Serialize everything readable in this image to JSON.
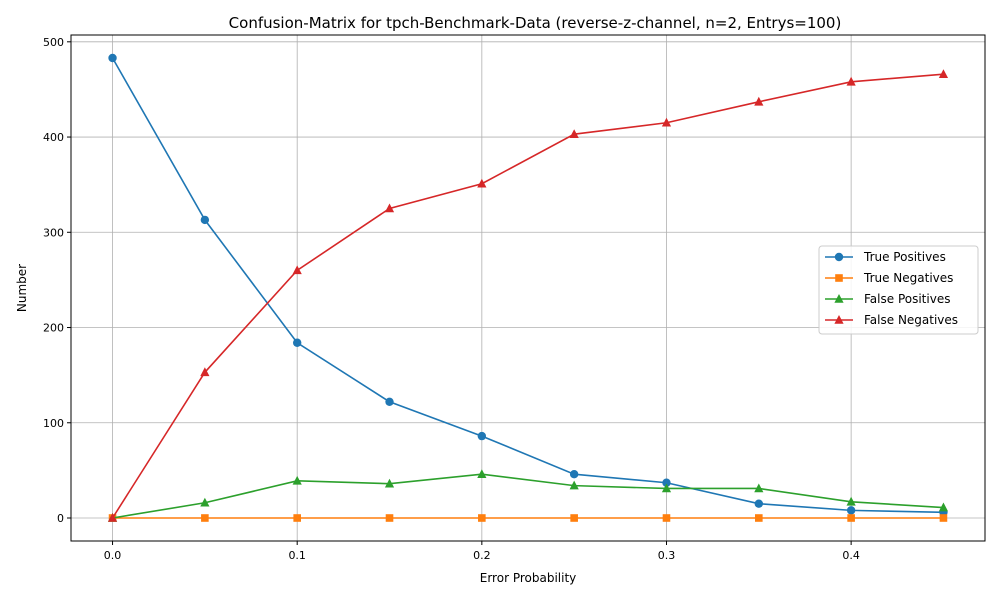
{
  "chart_data": {
    "type": "line",
    "title": "Confusion-Matrix for tpch-Benchmark-Data (reverse-z-channel, n=2, Entrys=100)",
    "xlabel": "Error Probability",
    "ylabel": "Number",
    "x": [
      0.0,
      0.05,
      0.1,
      0.15,
      0.2,
      0.25,
      0.3,
      0.35,
      0.4,
      0.45
    ],
    "xlim": [
      -0.0225,
      0.4725
    ],
    "ylim": [
      -24.15,
      507.15
    ],
    "xticks": [
      0.0,
      0.1,
      0.2,
      0.3,
      0.4
    ],
    "xtick_labels": [
      "0.0",
      "0.1",
      "0.2",
      "0.3",
      "0.4"
    ],
    "yticks": [
      0,
      100,
      200,
      300,
      400,
      500
    ],
    "ytick_labels": [
      "0",
      "100",
      "200",
      "300",
      "400",
      "500"
    ],
    "grid": true,
    "legend_position": "center-right",
    "series": [
      {
        "name": "True Positives",
        "color": "#1f77b4",
        "marker": "circle",
        "values": [
          483,
          313,
          184,
          122,
          86,
          46,
          37,
          15,
          8,
          6
        ]
      },
      {
        "name": "True Negatives",
        "color": "#ff7f0e",
        "marker": "square",
        "values": [
          0,
          0,
          0,
          0,
          0,
          0,
          0,
          0,
          0,
          0
        ]
      },
      {
        "name": "False Positives",
        "color": "#2ca02c",
        "marker": "triangle",
        "values": [
          0,
          16,
          39,
          36,
          46,
          34,
          31,
          31,
          17,
          11
        ]
      },
      {
        "name": "False Negatives",
        "color": "#d62728",
        "marker": "triangle",
        "values": [
          0,
          153,
          260,
          325,
          351,
          403,
          415,
          437,
          458,
          466
        ]
      }
    ]
  }
}
